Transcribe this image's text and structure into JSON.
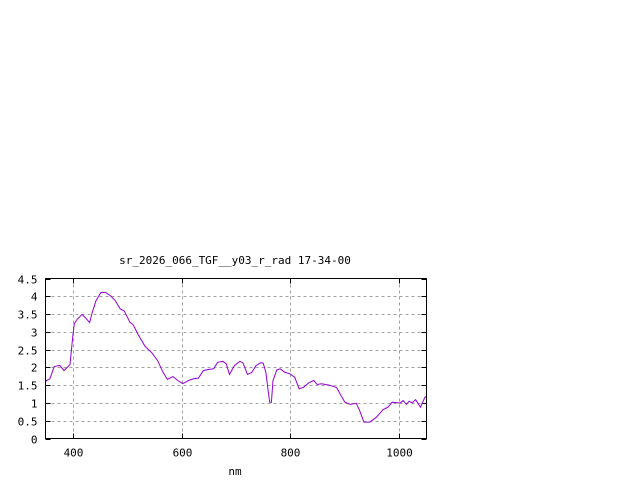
{
  "chart_data": {
    "type": "line",
    "title": "sr_2026_066_TGF__y03_r_rad 17-34-00",
    "xlabel": "nm",
    "ylabel": "",
    "xlim": [
      350,
      1050
    ],
    "ylim": [
      0,
      4.5
    ],
    "grid": true,
    "xticks": [
      400,
      600,
      800,
      1000
    ],
    "xtick_labels": [
      "400",
      "600",
      "800",
      "1000"
    ],
    "yticks": [
      0,
      0.5,
      1,
      1.5,
      2,
      2.5,
      3,
      3.5,
      4,
      4.5
    ],
    "ytick_labels": [
      "0",
      "0.5",
      "1",
      "1.5",
      "2",
      "2.5",
      "3",
      "3.5",
      "4",
      "4.5"
    ],
    "colors": {
      "series": "#9400d3",
      "grid": "#a0a0a0",
      "axes": "#000000"
    },
    "series": [
      {
        "x": [
          350,
          352,
          358,
          366,
          376,
          384,
          395,
          400,
          403,
          408,
          417,
          425,
          431,
          436,
          443,
          452,
          460,
          469,
          478,
          487,
          495,
          505,
          511,
          521,
          533,
          546,
          556,
          566,
          574,
          584,
          593,
          602,
          613,
          622,
          631,
          640,
          649,
          659,
          666,
          676,
          682,
          688,
          697,
          707,
          713,
          721,
          729,
          737,
          745,
          750,
          755,
          759,
          762,
          765,
          768,
          775,
          781,
          790,
          799,
          808,
          816,
          824,
          834,
          843,
          849,
          857,
          872,
          885,
          891,
          900,
          910,
          921,
          927,
          935,
          946,
          958,
          970,
          979,
          987,
          998,
          1002,
          1007,
          1013,
          1018,
          1024,
          1030,
          1039,
          1047,
          1050
        ],
        "y": [
          1.6,
          1.63,
          1.68,
          2.02,
          2.06,
          1.91,
          2.08,
          2.85,
          3.23,
          3.35,
          3.49,
          3.37,
          3.26,
          3.55,
          3.88,
          4.11,
          4.11,
          4.02,
          3.88,
          3.65,
          3.58,
          3.27,
          3.2,
          2.9,
          2.59,
          2.4,
          2.19,
          1.86,
          1.66,
          1.74,
          1.63,
          1.54,
          1.63,
          1.68,
          1.7,
          1.91,
          1.94,
          1.96,
          2.14,
          2.17,
          2.1,
          1.8,
          2.05,
          2.17,
          2.12,
          1.8,
          1.86,
          2.05,
          2.13,
          2.12,
          1.86,
          1.35,
          1.02,
          1.02,
          1.63,
          1.93,
          1.96,
          1.86,
          1.82,
          1.72,
          1.4,
          1.44,
          1.57,
          1.63,
          1.52,
          1.54,
          1.5,
          1.43,
          1.26,
          1.02,
          0.96,
          0.99,
          0.79,
          0.46,
          0.46,
          0.6,
          0.81,
          0.88,
          1.02,
          1.0,
          1.0,
          1.07,
          0.96,
          1.05,
          1.0,
          1.09,
          0.88,
          1.16,
          1.18
        ]
      }
    ]
  }
}
